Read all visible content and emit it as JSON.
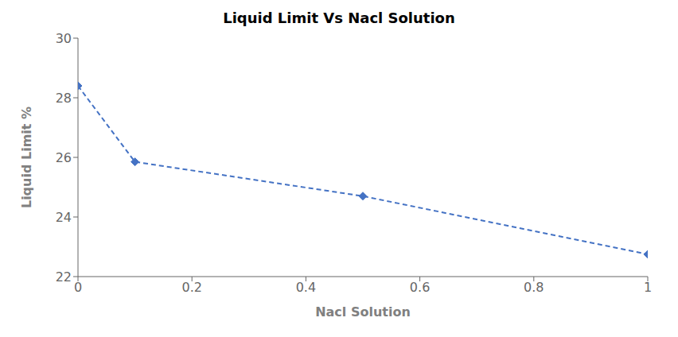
{
  "chart_data": {
    "type": "line",
    "title": "Liquid Limit Vs Nacl Solution",
    "xlabel": "Nacl Solution",
    "ylabel": "Liquid Limit %",
    "x": [
      0,
      0.1,
      0.5,
      1.0
    ],
    "values": [
      28.4,
      25.85,
      24.7,
      22.75
    ],
    "xlim": [
      0,
      1.0
    ],
    "ylim": [
      22,
      30
    ],
    "xticks": [
      0,
      0.2,
      0.4,
      0.6,
      0.8,
      1
    ],
    "yticks": [
      22,
      24,
      26,
      28,
      30
    ],
    "color": "#4472C4",
    "marker": "diamond",
    "line_style": "dashed",
    "grid": false
  }
}
